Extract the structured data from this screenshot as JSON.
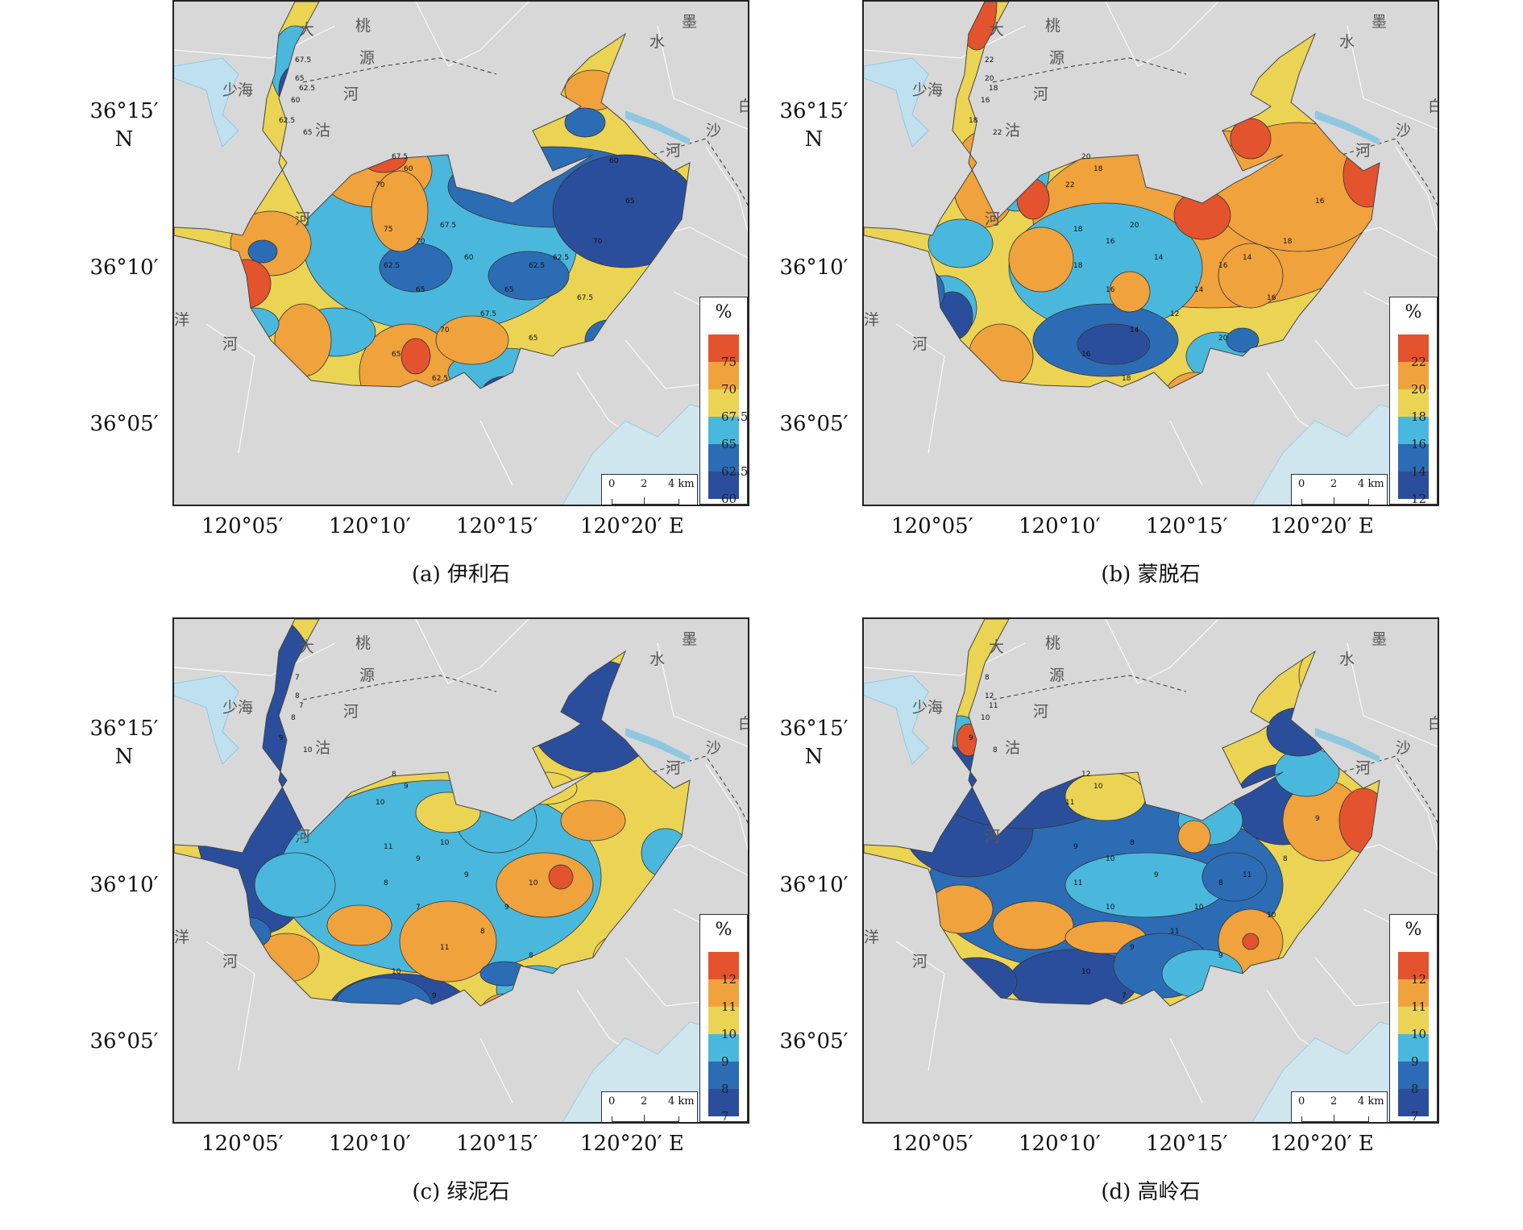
{
  "panels": [
    {
      "id": "a",
      "caption": "(a) 伊利石",
      "legend_unit": "%",
      "legend_ticks": [
        "75",
        "70",
        "67.5",
        "65",
        "62.5",
        "60"
      ],
      "legend_colors": [
        "#e2532e",
        "#f0a23c",
        "#ebd454",
        "#4ab8dc",
        "#2b6cb5",
        "#2b4e9c"
      ],
      "contour_labels": [
        "67.5",
        "65",
        "62.5",
        "60",
        "62.5",
        "65",
        "60",
        "67.5",
        "70",
        "75",
        "70",
        "67.5",
        "62.5",
        "65",
        "60",
        "62.5",
        "65",
        "67.5",
        "70",
        "65",
        "62.5",
        "65",
        "67.5",
        "62.5",
        "70",
        "65",
        "60"
      ],
      "fill_scheme": "illite"
    },
    {
      "id": "b",
      "caption": "(b) 蒙脱石",
      "legend_unit": "%",
      "legend_ticks": [
        "22",
        "20",
        "18",
        "16",
        "14",
        "12"
      ],
      "legend_colors": [
        "#e2532e",
        "#f0a23c",
        "#ebd454",
        "#4ab8dc",
        "#2b6cb5",
        "#2b4e9c"
      ],
      "contour_labels": [
        "22",
        "20",
        "18",
        "16",
        "18",
        "22",
        "18",
        "20",
        "22",
        "18",
        "16",
        "20",
        "18",
        "16",
        "14",
        "16",
        "14",
        "12",
        "14",
        "16",
        "18",
        "20",
        "16",
        "14",
        "18",
        "16"
      ],
      "fill_scheme": "smectite"
    },
    {
      "id": "c",
      "caption": "(c) 绿泥石",
      "legend_unit": "%",
      "legend_ticks": [
        "12",
        "11",
        "10",
        "9",
        "8",
        "7"
      ],
      "legend_colors": [
        "#e2532e",
        "#f0a23c",
        "#ebd454",
        "#4ab8dc",
        "#2b6cb5",
        "#2b4e9c"
      ],
      "contour_labels": [
        "7",
        "8",
        "7",
        "8",
        "9",
        "10",
        "9",
        "8",
        "10",
        "11",
        "9",
        "10",
        "8",
        "7",
        "9",
        "10",
        "9",
        "8",
        "11",
        "10",
        "9",
        "8"
      ],
      "fill_scheme": "chlorite"
    },
    {
      "id": "d",
      "caption": "(d) 高岭石",
      "legend_unit": "%",
      "legend_ticks": [
        "12",
        "11",
        "10",
        "9",
        "8",
        "7"
      ],
      "legend_colors": [
        "#e2532e",
        "#f0a23c",
        "#ebd454",
        "#4ab8dc",
        "#2b6cb5",
        "#2b4e9c"
      ],
      "contour_labels": [
        "8",
        "12",
        "11",
        "10",
        "9",
        "8",
        "10",
        "12",
        "11",
        "9",
        "10",
        "8",
        "11",
        "10",
        "9",
        "8",
        "10",
        "11",
        "9",
        "10",
        "7",
        "9",
        "10",
        "11",
        "8",
        "9"
      ],
      "fill_scheme": "kaolinite"
    }
  ],
  "lat_ticks": [
    "36°15′",
    "36°10′",
    "36°05′"
  ],
  "lat_hemisphere": "N",
  "lon_ticks": [
    "120°05′",
    "120°10′",
    "120°15′",
    "120°20′ E"
  ],
  "scale": {
    "labels": [
      "0",
      "2",
      "4 km"
    ]
  },
  "place_names": [
    "大",
    "桃",
    "源",
    "河",
    "洋",
    "河",
    "沽",
    "河",
    "水",
    "白",
    "沙",
    "河",
    "少海",
    "墨"
  ]
}
